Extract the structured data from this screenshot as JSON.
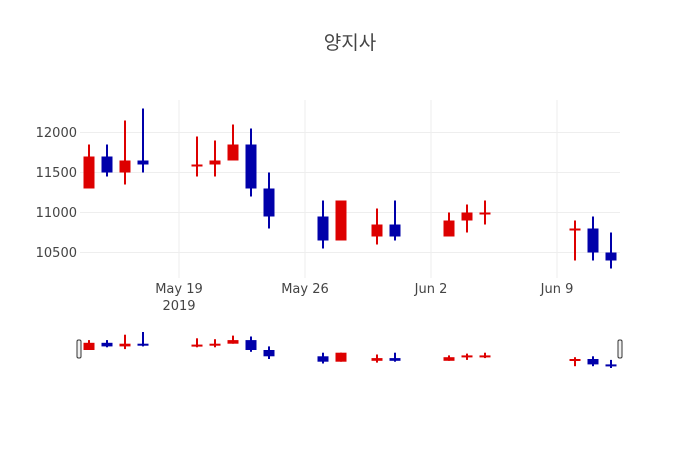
{
  "chart_data": {
    "type": "candlestick",
    "title": "양지사",
    "xlabel": "",
    "ylabel": "",
    "x_ticks": [
      {
        "label": "May 19",
        "sublabel": "2019",
        "date": "2019-05-19"
      },
      {
        "label": "May 26",
        "sublabel": "",
        "date": "2019-05-26"
      },
      {
        "label": "Jun 2",
        "sublabel": "",
        "date": "2019-06-02"
      },
      {
        "label": "Jun 9",
        "sublabel": "",
        "date": "2019-06-09"
      }
    ],
    "y_ticks": [
      10500,
      11000,
      11500,
      12000
    ],
    "ylim": [
      10250,
      12450
    ],
    "xlim": [
      "2019-05-13",
      "2019-06-13"
    ],
    "grid": true,
    "rangeslider": true,
    "increasing_color": "#dd0000",
    "decreasing_color": "#0000aa",
    "x": [
      "2019-05-14",
      "2019-05-15",
      "2019-05-16",
      "2019-05-17",
      "2019-05-20",
      "2019-05-21",
      "2019-05-22",
      "2019-05-23",
      "2019-05-24",
      "2019-05-27",
      "2019-05-28",
      "2019-05-30",
      "2019-05-31",
      "2019-06-03",
      "2019-06-04",
      "2019-06-05",
      "2019-06-10",
      "2019-06-11",
      "2019-06-12"
    ],
    "series": [
      {
        "name": "open",
        "values": [
          11300,
          11700,
          11500,
          11650,
          11600,
          11600,
          11650,
          11850,
          11300,
          10950,
          10650,
          10700,
          10850,
          10700,
          10900,
          11000,
          10800,
          10800,
          10500
        ]
      },
      {
        "name": "high",
        "values": [
          11850,
          11850,
          12150,
          12300,
          11950,
          11900,
          12100,
          12050,
          11500,
          11150,
          11150,
          11050,
          11150,
          11000,
          11100,
          11150,
          10900,
          10950,
          10750
        ]
      },
      {
        "name": "low",
        "values": [
          11300,
          11450,
          11350,
          11500,
          11450,
          11450,
          11650,
          11200,
          10800,
          10550,
          10650,
          10600,
          10650,
          10700,
          10750,
          10850,
          10400,
          10400,
          10300
        ]
      },
      {
        "name": "close",
        "values": [
          11700,
          11500,
          11650,
          11600,
          11600,
          11650,
          11850,
          11300,
          10950,
          10650,
          11150,
          10850,
          10700,
          10900,
          11000,
          11000,
          10800,
          10500,
          10400
        ]
      }
    ]
  }
}
